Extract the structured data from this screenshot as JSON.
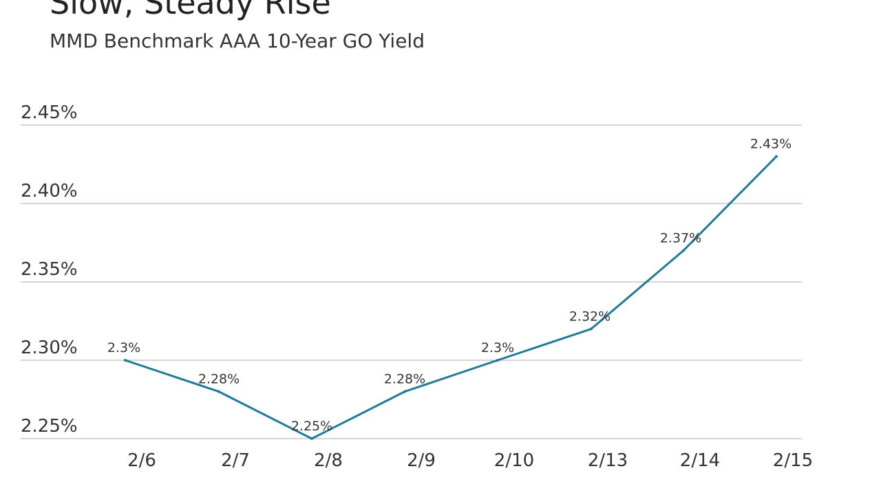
{
  "header": {
    "title": "Slow, Steady Rise",
    "subtitle": "MMD Benchmark AAA 10-Year GO Yield"
  },
  "colors": {
    "line": "#1f7a99",
    "grid": "#c8c8c8",
    "text": "#333333"
  },
  "chart_data": {
    "type": "line",
    "title": "Slow, Steady Rise",
    "subtitle": "MMD Benchmark AAA 10-Year GO Yield",
    "categories": [
      "2/6",
      "2/7",
      "2/8",
      "2/9",
      "2/10",
      "2/13",
      "2/14",
      "2/15"
    ],
    "series": [
      {
        "values": [
          2.3,
          2.28,
          2.25,
          2.28,
          2.3,
          2.32,
          2.37,
          2.43
        ],
        "labels": [
          "2.3%",
          "2.28%",
          "2.25%",
          "2.28%",
          "2.3%",
          "2.32%",
          "2.37%",
          "2.43%"
        ]
      }
    ],
    "yticks": [
      2.25,
      2.3,
      2.35,
      2.4,
      2.45
    ],
    "ytick_labels": [
      "2.25%",
      "2.30%",
      "2.35%",
      "2.40%",
      "2.45%"
    ],
    "ylim": [
      2.25,
      2.45
    ],
    "grid": true,
    "legend": "none"
  }
}
